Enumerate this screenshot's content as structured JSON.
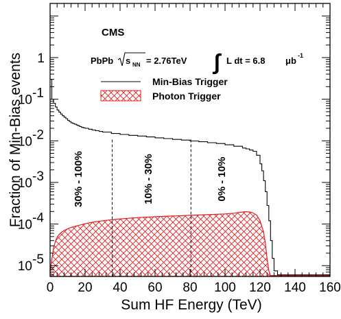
{
  "chart_data": {
    "type": "area",
    "title": "",
    "xlabel": "Sum HF Energy (TeV)",
    "ylabel": "Fraction of Min-Bias events",
    "xlim": [
      0,
      160
    ],
    "ylim": [
      5.5e-06,
      20
    ],
    "yscale": "log",
    "x_ticks": [
      "0",
      "20",
      "40",
      "60",
      "80",
      "100",
      "120",
      "140",
      "160"
    ],
    "y_ticks": [
      {
        "value": 1e-05,
        "base": "10",
        "exp": "-5"
      },
      {
        "value": 0.0001,
        "base": "10",
        "exp": "-4"
      },
      {
        "value": 0.001,
        "base": "10",
        "exp": "-3"
      },
      {
        "value": 0.01,
        "base": "10",
        "exp": "-2"
      },
      {
        "value": 0.1,
        "base": "10",
        "exp": "-1"
      },
      {
        "value": 1,
        "base": "1",
        "exp": ""
      }
    ],
    "legend_placement": "top-right",
    "experiment_label": "CMS",
    "conditions": {
      "system": "PbPb",
      "sqrt_label": "s",
      "sqrt_sub": "NN",
      "energy": "= 2.76TeV",
      "integral": "∫",
      "lumi_text": "L dt = 6.8",
      "lumi_unit": "μb",
      "lumi_exp": "-1"
    },
    "series": [
      {
        "name": "Min-Bias Trigger",
        "style": "step-line",
        "color": "#000000",
        "x": [
          0,
          1,
          2,
          3,
          4,
          5,
          6,
          7,
          8,
          9,
          10,
          11,
          12,
          13,
          14,
          15,
          16,
          17,
          18,
          19,
          20,
          22,
          24,
          26,
          28,
          30,
          35,
          40,
          45,
          50,
          55,
          60,
          65,
          70,
          75,
          80,
          85,
          90,
          95,
          100,
          105,
          110,
          112,
          114,
          116,
          118,
          120,
          121,
          122,
          123,
          124,
          125,
          126,
          127,
          128,
          130,
          160
        ],
        "y": [
          0.3,
          0.1,
          0.08,
          0.065,
          0.055,
          0.049,
          0.044,
          0.04,
          0.037,
          0.034,
          0.031,
          0.029,
          0.027,
          0.026,
          0.025,
          0.024,
          0.023,
          0.022,
          0.021,
          0.0205,
          0.02,
          0.019,
          0.0182,
          0.0175,
          0.0168,
          0.0162,
          0.015,
          0.0142,
          0.0135,
          0.013,
          0.0124,
          0.0118,
          0.0113,
          0.0108,
          0.0104,
          0.0099,
          0.0095,
          0.009,
          0.0086,
          0.008,
          0.0074,
          0.0067,
          0.0064,
          0.006,
          0.0056,
          0.0045,
          0.0028,
          0.0019,
          0.0011,
          0.0006,
          0.00028,
          0.00012,
          4e-05,
          1.5e-05,
          7.5e-06,
          6e-06,
          6e-06
        ]
      },
      {
        "name": "Photon Trigger",
        "style": "hatched-fill",
        "color": "#e31a1c",
        "x": [
          0,
          1,
          2,
          3,
          4,
          5,
          6,
          8,
          10,
          12,
          15,
          20,
          25,
          30,
          35,
          40,
          50,
          60,
          70,
          80,
          90,
          100,
          105,
          110,
          112,
          114,
          116,
          118,
          120,
          122,
          123,
          124,
          125,
          126,
          160
        ],
        "y": [
          6.5e-06,
          1.4e-05,
          2.7e-05,
          3.8e-05,
          4.8e-05,
          5.5e-05,
          6.1e-05,
          7e-05,
          7.7e-05,
          8.3e-05,
          9e-05,
          0.000102,
          0.000112,
          0.00012,
          0.000127,
          0.000133,
          0.000143,
          0.00015,
          0.000156,
          0.000162,
          0.000168,
          0.000175,
          0.000182,
          0.000195,
          0.000198,
          0.000195,
          0.000185,
          0.000165,
          0.00012,
          6.5e-05,
          3.5e-05,
          1.5e-05,
          7.5e-06,
          5.8e-06,
          5.8e-06
        ]
      }
    ],
    "centrality_bins": [
      {
        "label": "30% - 100%",
        "x": 18
      },
      {
        "label": "10% - 30%",
        "x": 58
      },
      {
        "label": "0% - 10%",
        "x": 100
      }
    ],
    "dividers_x": [
      35.5,
      80.5
    ]
  }
}
